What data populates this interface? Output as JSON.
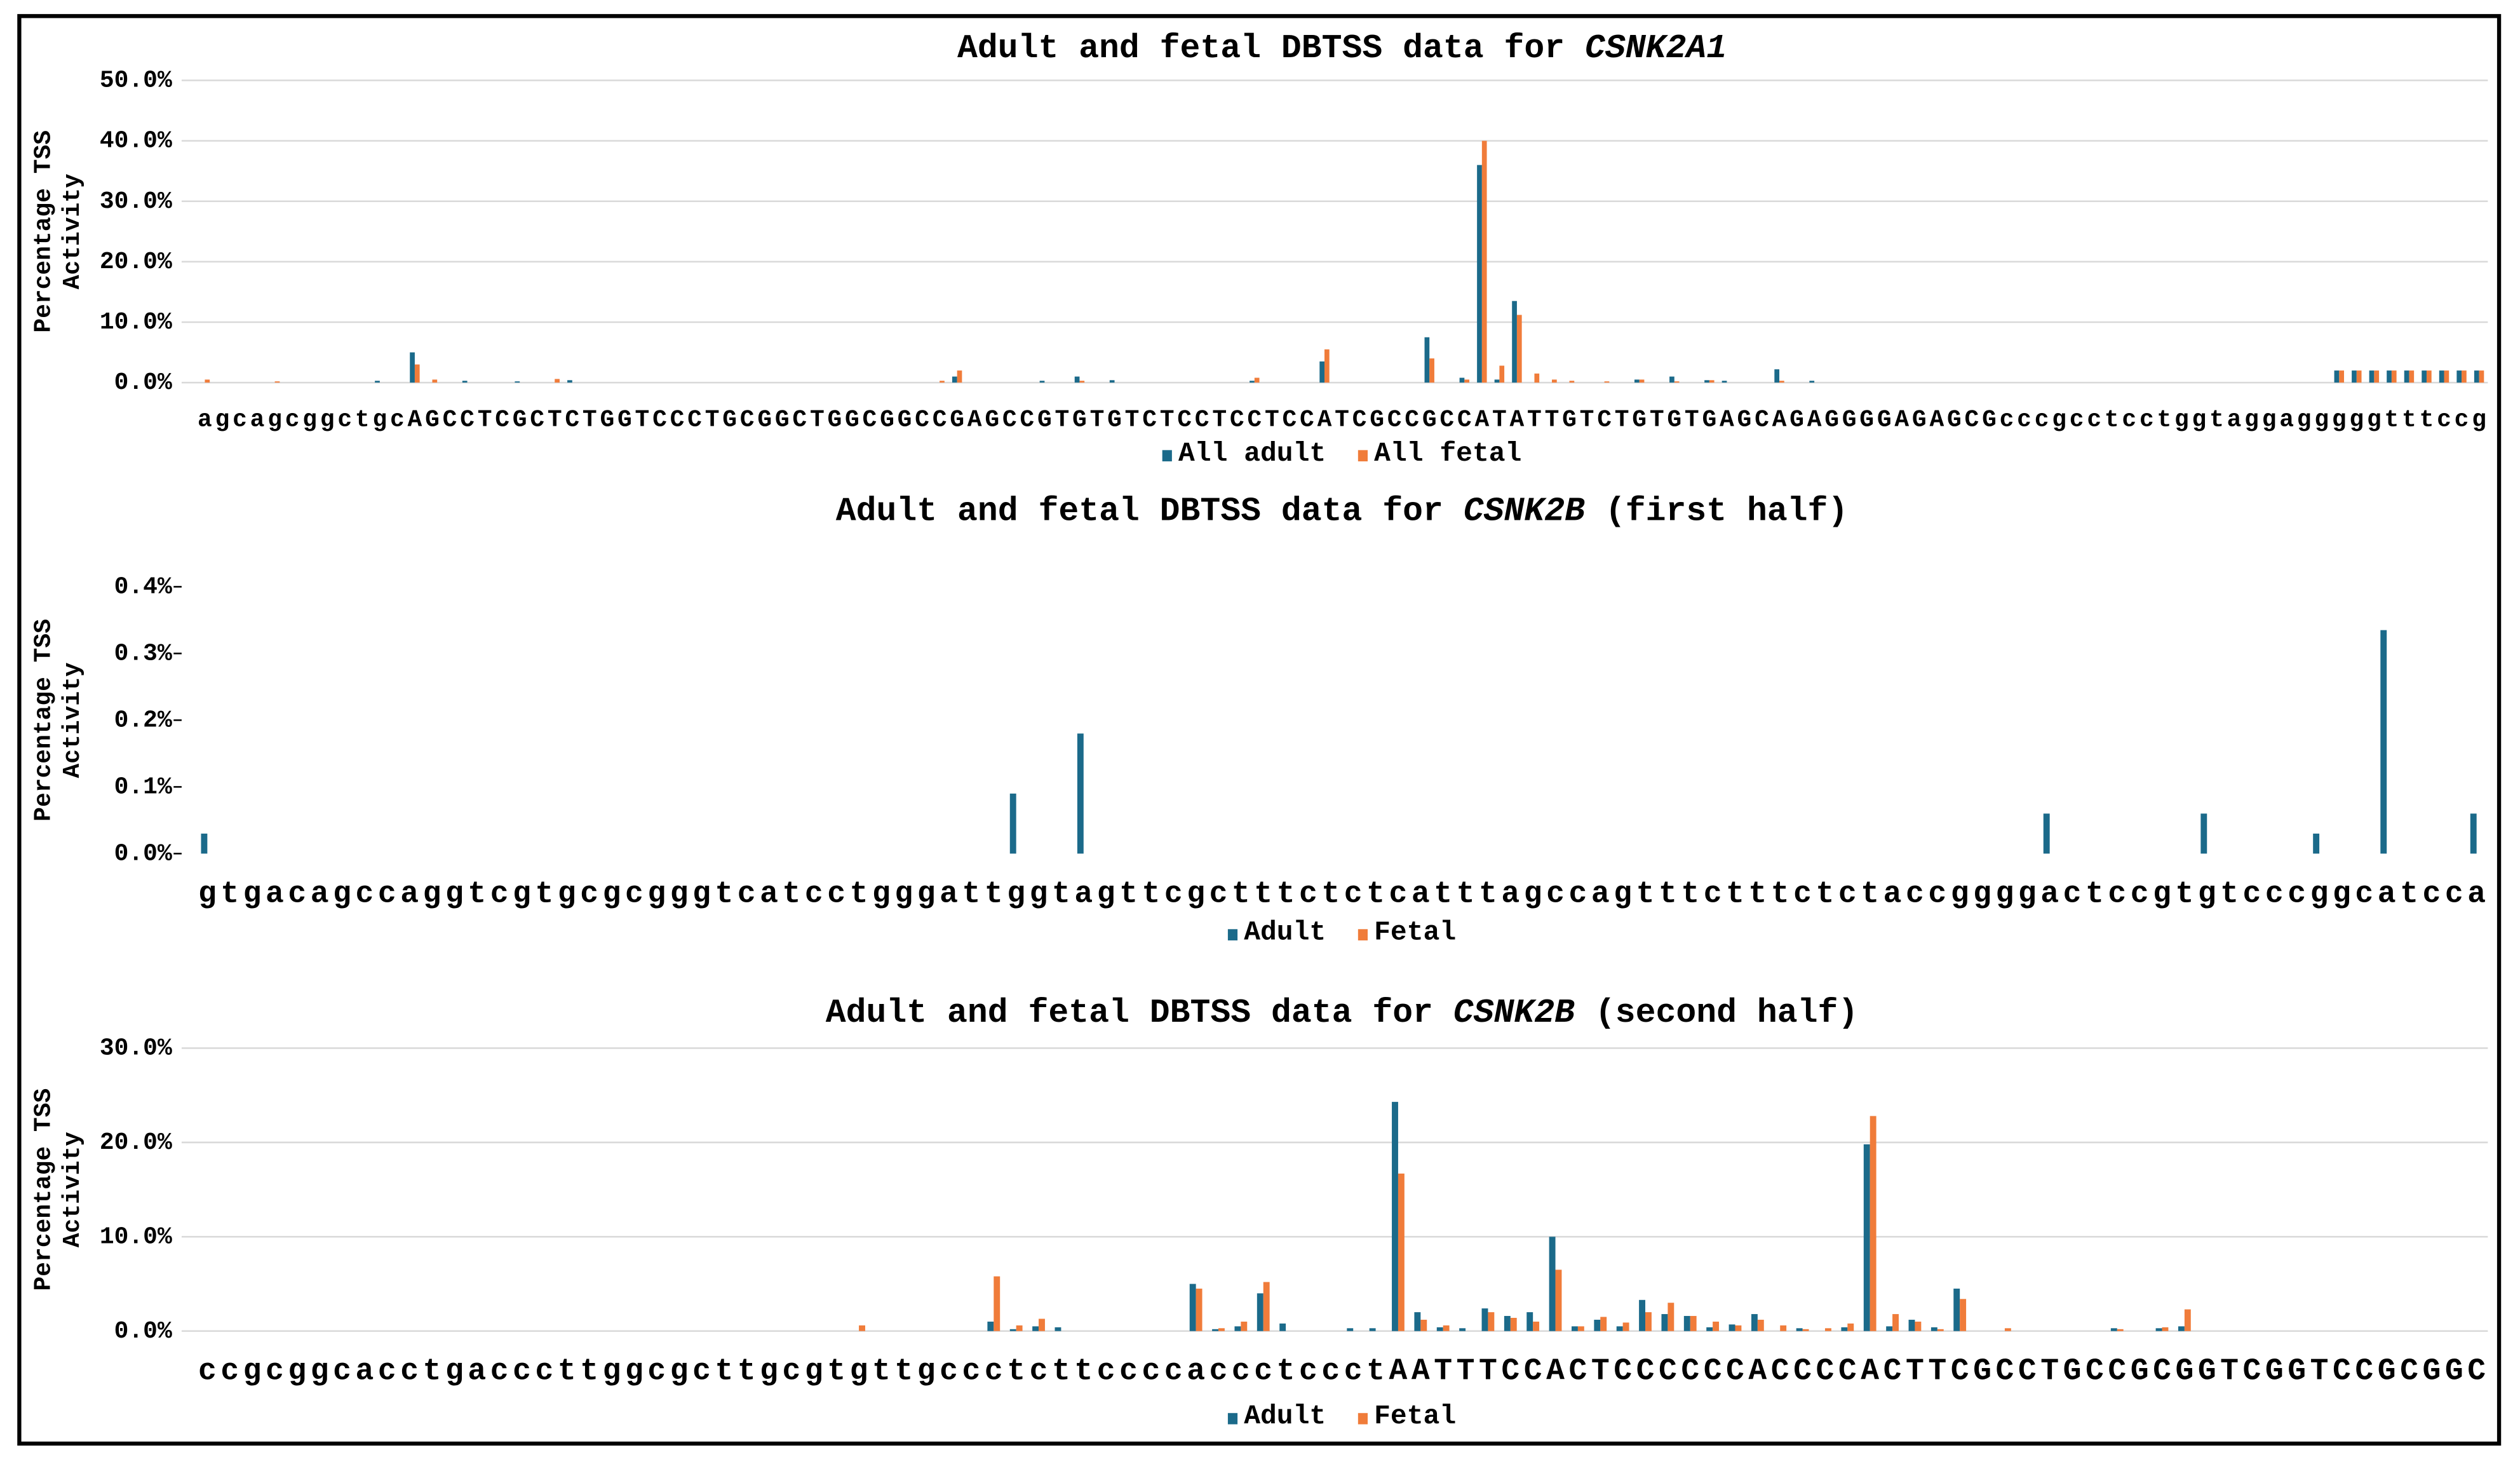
{
  "chart_data": [
    {
      "type": "bar",
      "title": [
        "Adult and fetal DBTSS data for ",
        "CSNK2A1"
      ],
      "y_label": [
        "Percentage TSS",
        "Activity"
      ],
      "categories": [
        "a",
        "g",
        "c",
        "a",
        "g",
        "c",
        "g",
        "g",
        "c",
        "t",
        "g",
        "c",
        "A",
        "G",
        "C",
        "C",
        "T",
        "C",
        "G",
        "C",
        "T",
        "C",
        "T",
        "G",
        "G",
        "T",
        "C",
        "C",
        "C",
        "T",
        "G",
        "C",
        "G",
        "G",
        "C",
        "T",
        "G",
        "G",
        "C",
        "G",
        "G",
        "C",
        "C",
        "G",
        "A",
        "G",
        "C",
        "C",
        "G",
        "T",
        "G",
        "T",
        "G",
        "T",
        "C",
        "T",
        "C",
        "C",
        "T",
        "C",
        "C",
        "T",
        "C",
        "C",
        "A",
        "T",
        "C",
        "G",
        "C",
        "C",
        "G",
        "C",
        "C",
        "A",
        "T",
        "A",
        "T",
        "T",
        "G",
        "T",
        "C",
        "T",
        "G",
        "T",
        "G",
        "T",
        "G",
        "A",
        "G",
        "C",
        "A",
        "G",
        "A",
        "G",
        "G",
        "G",
        "G",
        "A",
        "G",
        "A",
        "G",
        "C",
        "G",
        "c",
        "c",
        "c",
        "g",
        "c",
        "c",
        "t",
        "c",
        "c",
        "t",
        "g",
        "g",
        "t",
        "a",
        "g",
        "g",
        "a",
        "g",
        "g",
        "g",
        "g",
        "g",
        "t",
        "t",
        "t",
        "c",
        "c",
        "g"
      ],
      "series": [
        {
          "name": "All adult",
          "color": "#1b6a8a",
          "values": [
            0,
            0,
            0,
            0,
            0,
            0,
            0,
            0,
            0,
            0,
            0.3,
            0,
            5,
            0,
            0,
            0.3,
            0,
            0,
            0.2,
            0,
            0,
            0.4,
            0,
            0,
            0,
            0,
            0,
            0,
            0,
            0,
            0,
            0,
            0,
            0,
            0,
            0,
            0,
            0,
            0,
            0,
            0,
            0,
            0,
            1,
            0,
            0,
            0,
            0,
            0.3,
            0,
            1,
            0,
            0.4,
            0,
            0,
            0,
            0,
            0,
            0,
            0,
            0.3,
            0,
            0,
            0,
            3.5,
            0,
            0,
            0,
            0,
            0,
            7.5,
            0,
            0.8,
            36,
            0.5,
            13.5,
            0,
            0,
            0,
            0,
            0,
            0,
            0.5,
            0,
            1,
            0,
            0.4,
            0.3,
            0,
            0,
            2.2,
            0,
            0.3,
            0,
            0,
            0,
            0,
            0,
            0,
            0,
            0,
            0,
            0,
            0,
            0,
            0,
            0,
            0,
            0,
            0,
            0,
            0,
            0,
            0,
            0,
            0,
            0,
            0,
            0,
            0,
            0,
            0,
            2,
            2,
            2,
            2,
            2,
            2,
            2,
            2,
            2
          ]
        },
        {
          "name": "All fetal",
          "color": "#f07c3a",
          "values": [
            0.5,
            0,
            0,
            0,
            0.2,
            0,
            0,
            0,
            0,
            0,
            0,
            0,
            3,
            0.5,
            0,
            0,
            0,
            0,
            0,
            0,
            0.6,
            0,
            0,
            0,
            0,
            0,
            0,
            0,
            0,
            0,
            0,
            0,
            0,
            0,
            0,
            0,
            0,
            0,
            0,
            0,
            0,
            0,
            0.3,
            2,
            0,
            0,
            0,
            0,
            0,
            0,
            0.3,
            0,
            0,
            0,
            0,
            0,
            0,
            0,
            0,
            0,
            0.8,
            0,
            0,
            0,
            5.5,
            0,
            0,
            0,
            0,
            0,
            4,
            0,
            0.5,
            40,
            2.8,
            11.2,
            1.5,
            0.5,
            0.3,
            0,
            0.2,
            0,
            0.5,
            0,
            0.2,
            0,
            0.4,
            0,
            0,
            0,
            0.3,
            0,
            0,
            0,
            0,
            0,
            0,
            0,
            0,
            0,
            0,
            0,
            0,
            0,
            0,
            0,
            0,
            0,
            0,
            0,
            0,
            0,
            0,
            0,
            0,
            0,
            0,
            0,
            0,
            0,
            0,
            0,
            2,
            2,
            2,
            2,
            2,
            2,
            2,
            2,
            2
          ]
        }
      ],
      "ylim": [
        0,
        50
      ],
      "yticks": [
        {
          "value": 0,
          "label": "0.0%"
        },
        {
          "value": 10,
          "label": "10.0%"
        },
        {
          "value": 20,
          "label": "20.0%"
        },
        {
          "value": 30,
          "label": "30.0%"
        },
        {
          "value": 40,
          "label": "40.0%"
        },
        {
          "value": 50,
          "label": "50.0%"
        }
      ],
      "grid": true,
      "legend": "bottom"
    },
    {
      "type": "bar",
      "title": [
        "Adult and fetal DBTSS data for ",
        "CSNK2B",
        " (first half)"
      ],
      "y_label": [
        "Percentage TSS",
        "Activity"
      ],
      "categories": [
        "g",
        "t",
        "g",
        "a",
        "c",
        "a",
        "g",
        "c",
        "c",
        "a",
        "g",
        "g",
        "t",
        "c",
        "g",
        "t",
        "g",
        "c",
        "g",
        "c",
        "g",
        "g",
        "g",
        "t",
        "c",
        "a",
        "t",
        "c",
        "c",
        "t",
        "g",
        "g",
        "g",
        "a",
        "t",
        "t",
        "g",
        "g",
        "t",
        "a",
        "g",
        "t",
        "t",
        "c",
        "g",
        "c",
        "t",
        "t",
        "t",
        "c",
        "t",
        "c",
        "t",
        "c",
        "a",
        "t",
        "t",
        "t",
        "a",
        "g",
        "c",
        "c",
        "a",
        "g",
        "t",
        "t",
        "t",
        "c",
        "t",
        "t",
        "t",
        "c",
        "t",
        "c",
        "t",
        "a",
        "c",
        "c",
        "g",
        "g",
        "g",
        "g",
        "a",
        "c",
        "t",
        "c",
        "c",
        "g",
        "t",
        "g",
        "t",
        "c",
        "c",
        "c",
        "g",
        "g",
        "c",
        "a",
        "t",
        "c",
        "c",
        "a"
      ],
      "series": [
        {
          "name": "Adult",
          "color": "#1b6a8a",
          "values": [
            0.03,
            0,
            0,
            0,
            0,
            0,
            0,
            0,
            0,
            0,
            0,
            0,
            0,
            0,
            0,
            0,
            0,
            0,
            0,
            0,
            0,
            0,
            0,
            0,
            0,
            0,
            0,
            0,
            0,
            0,
            0,
            0,
            0,
            0,
            0,
            0,
            0.09,
            0,
            0,
            0.18,
            0,
            0,
            0,
            0,
            0,
            0,
            0,
            0,
            0,
            0,
            0,
            0,
            0,
            0,
            0,
            0,
            0,
            0,
            0,
            0,
            0,
            0,
            0,
            0,
            0,
            0,
            0,
            0,
            0,
            0,
            0,
            0,
            0,
            0,
            0,
            0,
            0,
            0,
            0,
            0,
            0,
            0,
            0.06,
            0,
            0,
            0,
            0,
            0,
            0,
            0.06,
            0,
            0,
            0,
            0,
            0.03,
            0,
            0,
            0.335,
            0,
            0,
            0,
            0.06
          ]
        },
        {
          "name": "Fetal",
          "color": "#f07c3a",
          "values": [
            0,
            0,
            0,
            0,
            0,
            0,
            0,
            0,
            0,
            0,
            0,
            0,
            0,
            0,
            0,
            0,
            0,
            0,
            0,
            0,
            0,
            0,
            0,
            0,
            0,
            0,
            0,
            0,
            0,
            0,
            0,
            0,
            0,
            0,
            0,
            0,
            0,
            0,
            0,
            0,
            0,
            0,
            0,
            0,
            0,
            0,
            0,
            0,
            0,
            0,
            0,
            0,
            0,
            0,
            0,
            0,
            0,
            0,
            0,
            0,
            0,
            0,
            0,
            0,
            0,
            0,
            0,
            0,
            0,
            0,
            0,
            0,
            0,
            0,
            0,
            0,
            0,
            0,
            0,
            0,
            0,
            0,
            0,
            0,
            0,
            0,
            0,
            0,
            0,
            0,
            0,
            0,
            0,
            0,
            0,
            0,
            0,
            0,
            0,
            0,
            0,
            0
          ]
        }
      ],
      "ylim": [
        0,
        0.4
      ],
      "yticks": [
        {
          "value": 0,
          "label": "0.0%"
        },
        {
          "value": 0.1,
          "label": "0.1%"
        },
        {
          "value": 0.2,
          "label": "0.2%"
        },
        {
          "value": 0.3,
          "label": "0.3%"
        },
        {
          "value": 0.4,
          "label": "0.4%"
        }
      ],
      "grid": false,
      "legend": "bottom"
    },
    {
      "type": "bar",
      "title": [
        "Adult and fetal DBTSS data for ",
        "CSNK2B",
        " (second half)"
      ],
      "y_label": [
        "Percentage TSS",
        "Activity"
      ],
      "categories": [
        "c",
        "c",
        "g",
        "c",
        "g",
        "g",
        "c",
        "a",
        "c",
        "c",
        "t",
        "g",
        "a",
        "c",
        "c",
        "c",
        "t",
        "t",
        "g",
        "g",
        "c",
        "g",
        "c",
        "t",
        "t",
        "g",
        "c",
        "g",
        "t",
        "g",
        "t",
        "t",
        "g",
        "c",
        "c",
        "c",
        "t",
        "c",
        "t",
        "t",
        "c",
        "c",
        "c",
        "c",
        "a",
        "c",
        "c",
        "c",
        "t",
        "c",
        "c",
        "c",
        "t",
        "A",
        "A",
        "T",
        "T",
        "T",
        "C",
        "C",
        "A",
        "C",
        "T",
        "C",
        "C",
        "C",
        "C",
        "C",
        "C",
        "A",
        "C",
        "C",
        "C",
        "C",
        "A",
        "C",
        "T",
        "T",
        "C",
        "G",
        "C",
        "C",
        "T",
        "G",
        "C",
        "C",
        "G",
        "C",
        "G",
        "G",
        "T",
        "C",
        "G",
        "G",
        "T",
        "C",
        "C",
        "G",
        "C",
        "G",
        "G",
        "C"
      ],
      "series": [
        {
          "name": "Adult",
          "color": "#1b6a8a",
          "values": [
            0,
            0,
            0,
            0,
            0,
            0,
            0,
            0,
            0,
            0,
            0,
            0,
            0,
            0,
            0,
            0,
            0,
            0,
            0,
            0,
            0,
            0,
            0,
            0,
            0,
            0,
            0,
            0,
            0,
            0,
            0,
            0,
            0,
            0,
            0,
            1,
            0.2,
            0.5,
            0.4,
            0,
            0,
            0,
            0,
            0,
            5,
            0.2,
            0.5,
            4,
            0.8,
            0,
            0,
            0.3,
            0.3,
            24.3,
            2,
            0.4,
            0.3,
            2.4,
            1.6,
            2,
            10,
            0.5,
            1.2,
            0.5,
            3.3,
            1.8,
            1.6,
            0.4,
            0.7,
            1.8,
            0,
            0.3,
            0,
            0.4,
            19.8,
            0.5,
            1.2,
            0.4,
            4.5,
            0,
            0,
            0,
            0,
            0,
            0,
            0.3,
            0,
            0.3,
            0.5,
            0,
            0,
            0,
            0,
            0,
            0,
            0,
            0,
            0,
            0,
            0,
            0,
            0
          ]
        },
        {
          "name": "Fetal",
          "color": "#f07c3a",
          "values": [
            0,
            0,
            0,
            0,
            0,
            0,
            0,
            0,
            0,
            0,
            0,
            0,
            0,
            0,
            0,
            0,
            0,
            0,
            0,
            0,
            0,
            0,
            0,
            0,
            0,
            0,
            0,
            0,
            0,
            0.6,
            0,
            0,
            0,
            0,
            0,
            5.8,
            0.6,
            1.3,
            0,
            0,
            0,
            0,
            0,
            0,
            4.5,
            0.3,
            1,
            5.2,
            0,
            0,
            0,
            0,
            0,
            16.7,
            1.2,
            0.6,
            0,
            2,
            1.4,
            1,
            6.5,
            0.5,
            1.5,
            0.9,
            2,
            3,
            1.6,
            1,
            0.6,
            1.2,
            0.6,
            0.2,
            0.3,
            0.8,
            22.8,
            1.8,
            1,
            0.2,
            3.4,
            0,
            0.3,
            0,
            0,
            0,
            0,
            0.2,
            0,
            0.4,
            2.3,
            0,
            0,
            0,
            0,
            0,
            0,
            0,
            0,
            0,
            0,
            0,
            0,
            0
          ]
        }
      ],
      "ylim": [
        0,
        30
      ],
      "yticks": [
        {
          "value": 0,
          "label": "0.0%"
        },
        {
          "value": 10,
          "label": "10.0%"
        },
        {
          "value": 20,
          "label": "20.0%"
        },
        {
          "value": 30,
          "label": "30.0%"
        }
      ],
      "grid": true,
      "legend": "bottom"
    }
  ]
}
